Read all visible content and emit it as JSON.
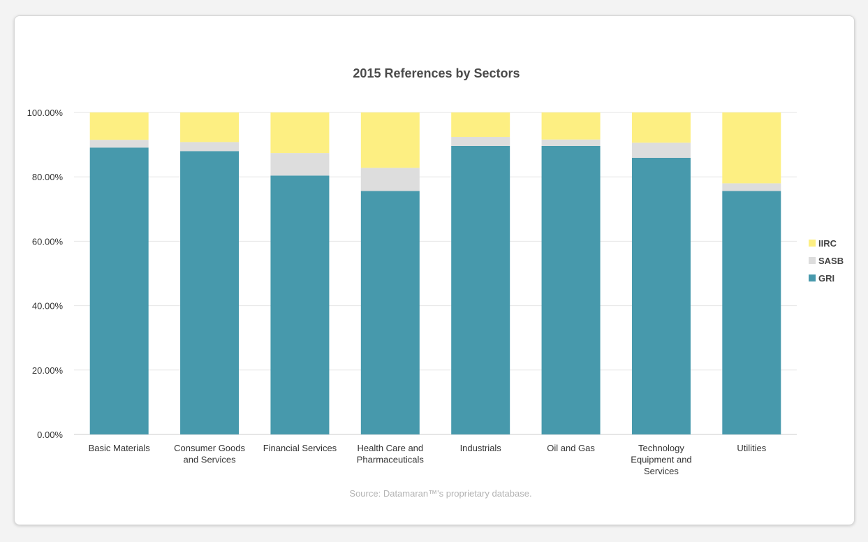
{
  "chart_data": {
    "type": "bar",
    "stacked": true,
    "title": "2015 References by Sectors",
    "source": "Source: Datamaran™'s proprietary database.",
    "categories": [
      [
        "Basic Materials"
      ],
      [
        "Consumer Goods",
        "and Services"
      ],
      [
        "Financial Services"
      ],
      [
        "Health Care and",
        "Pharmaceuticals"
      ],
      [
        "Industrials"
      ],
      [
        "Oil and Gas"
      ],
      [
        "Technology",
        "Equipment and",
        "Services"
      ],
      [
        "Utilities"
      ]
    ],
    "series": [
      {
        "name": "GRI",
        "color": "#4799ac",
        "values": [
          89.1,
          88.0,
          80.4,
          75.6,
          89.6,
          89.6,
          85.9,
          75.6
        ]
      },
      {
        "name": "SASB",
        "color": "#dddddd",
        "values": [
          2.4,
          2.8,
          7.0,
          7.2,
          2.8,
          2.0,
          4.7,
          2.4
        ]
      },
      {
        "name": "IIRC",
        "color": "#fdef82",
        "values": [
          8.5,
          9.2,
          12.6,
          17.2,
          7.6,
          8.4,
          9.4,
          22.0
        ]
      }
    ],
    "legend_order": [
      "IIRC",
      "SASB",
      "GRI"
    ],
    "legend_position": "right",
    "ylim": [
      0,
      100
    ],
    "yticks": [
      "0.00%",
      "20.00%",
      "40.00%",
      "60.00%",
      "80.00%",
      "100.00%"
    ],
    "grid": true
  }
}
